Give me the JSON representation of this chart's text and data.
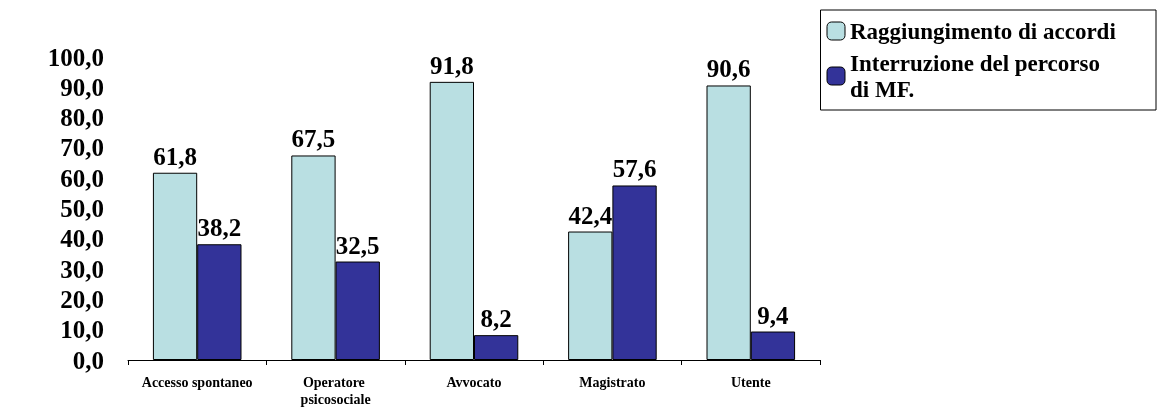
{
  "chart_data": {
    "type": "bar",
    "categories": [
      "Accesso spontaneo",
      "Operatore psicosociale",
      "Avvocato",
      "Magistrato",
      "Utente"
    ],
    "series": [
      {
        "name": "Raggiungimento di accordi",
        "color": "#b9dfe2",
        "values": [
          61.8,
          67.5,
          91.8,
          42.4,
          90.6
        ],
        "value_labels": [
          "61,8",
          "67,5",
          "91,8",
          "42,4",
          "90,6"
        ]
      },
      {
        "name": "Interruzione del percorso di MF.",
        "color": "#333399",
        "values": [
          38.2,
          32.5,
          8.2,
          57.6,
          9.4
        ],
        "value_labels": [
          "38,2",
          "32,5",
          "8,2",
          "57,6",
          "9,4"
        ]
      }
    ],
    "ylim": [
      0,
      100
    ],
    "yticks": [
      {
        "value": 0,
        "label": "0,0"
      },
      {
        "value": 10,
        "label": "10,0"
      },
      {
        "value": 20,
        "label": "20,0"
      },
      {
        "value": 30,
        "label": "30,0"
      },
      {
        "value": 40,
        "label": "40,0"
      },
      {
        "value": 50,
        "label": "50,0"
      },
      {
        "value": 60,
        "label": "60,0"
      },
      {
        "value": 70,
        "label": "70,0"
      },
      {
        "value": 80,
        "label": "80,0"
      },
      {
        "value": 90,
        "label": "90,0"
      },
      {
        "value": 100,
        "label": "100,0"
      }
    ],
    "grid": false,
    "legend": "top right"
  }
}
